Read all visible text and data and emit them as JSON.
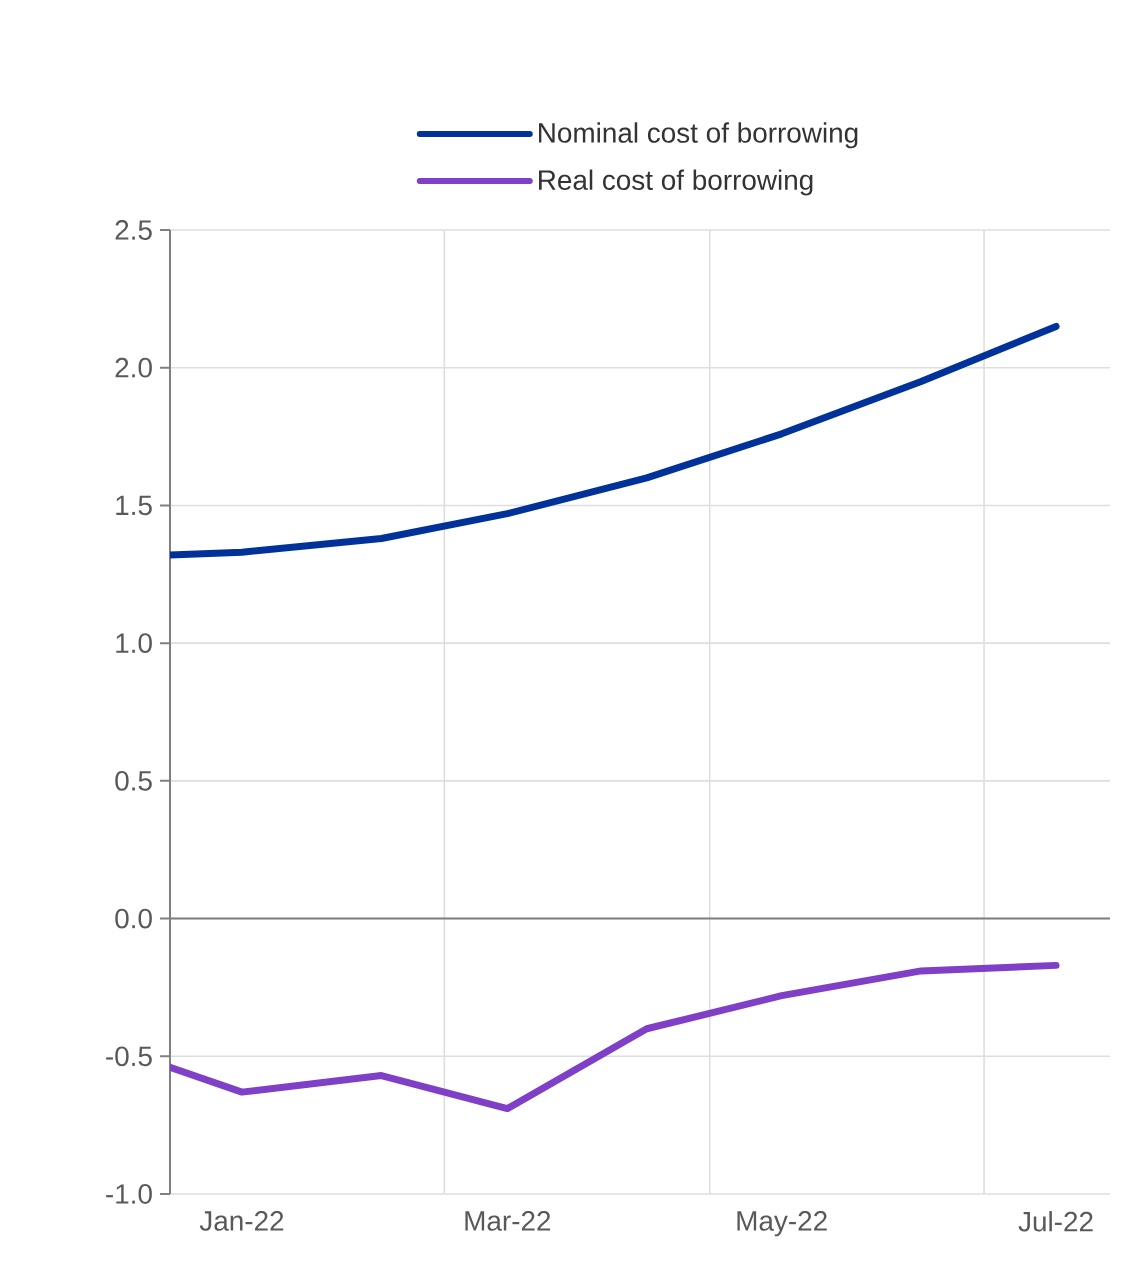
{
  "chart_data": {
    "type": "line",
    "x": [
      "2021-12-16",
      "2022-01",
      "2022-02",
      "2022-03",
      "2022-04",
      "2022-05",
      "2022-06",
      "2022-07"
    ],
    "series": [
      {
        "name": "Nominal cost of borrowing",
        "color": "#003299",
        "values": [
          1.32,
          1.33,
          1.38,
          1.47,
          1.6,
          1.76,
          1.95,
          2.15
        ]
      },
      {
        "name": "Real cost of borrowing",
        "color": "#7f3fc6",
        "values": [
          -0.54,
          -0.63,
          -0.57,
          -0.69,
          -0.4,
          -0.28,
          -0.19,
          -0.17
        ]
      }
    ],
    "xlim": [
      "2021-12-16",
      "2022-07-13"
    ],
    "xticks": [
      {
        "value": "2022-01",
        "label": "Jan-22"
      },
      {
        "value": "2022-02-15",
        "label": null
      },
      {
        "value": "2022-03",
        "label": "Mar-22"
      },
      {
        "value": "2022-04-15",
        "label": null
      },
      {
        "value": "2022-05",
        "label": "May-22"
      },
      {
        "value": "2022-06-15",
        "label": null
      },
      {
        "value": "2022-07",
        "label": "Jul-22"
      }
    ],
    "ylim": [
      -1.0,
      2.5
    ],
    "yticks": [
      {
        "value": -1.0,
        "label": "-1.0"
      },
      {
        "value": -0.5,
        "label": "-0.5"
      },
      {
        "value": 0.0,
        "label": "0.0"
      },
      {
        "value": 0.5,
        "label": "0.5"
      },
      {
        "value": 1.0,
        "label": "1.0"
      },
      {
        "value": 1.5,
        "label": "1.5"
      },
      {
        "value": 2.0,
        "label": "2.0"
      },
      {
        "value": 2.5,
        "label": "2.5"
      }
    ],
    "ref_lines": [
      {
        "axis": "y",
        "value": 0,
        "color": "#7f7f7f"
      }
    ],
    "grid": true,
    "legend": "top",
    "marker": "none",
    "line_style": "solid"
  }
}
